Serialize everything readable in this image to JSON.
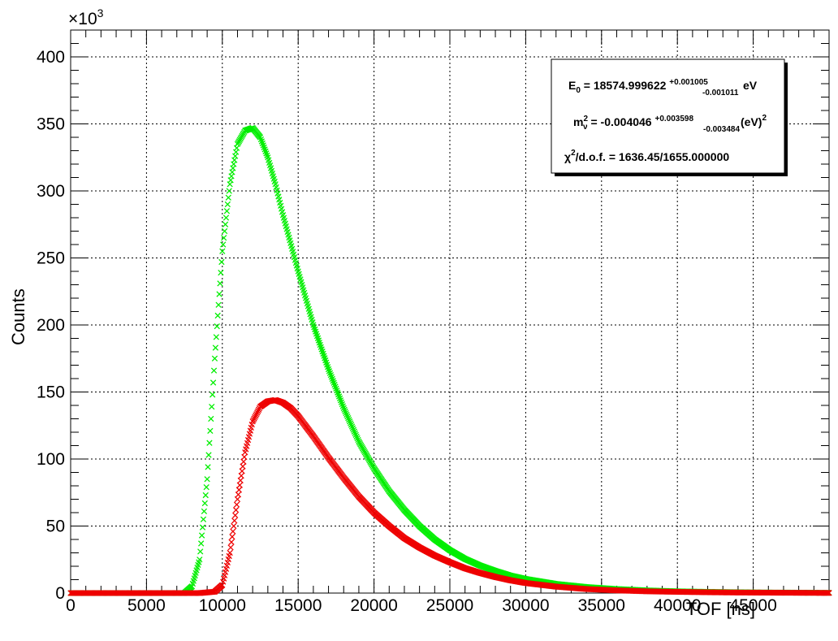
{
  "chart_data": {
    "type": "scatter",
    "xlabel": "TOF [ns]",
    "ylabel": "Counts",
    "y_multiplier_base": "×10",
    "y_multiplier_exp": "3",
    "xlim": [
      0,
      50000
    ],
    "ylim": [
      0,
      420
    ],
    "x_ticks": [
      0,
      5000,
      10000,
      15000,
      20000,
      25000,
      30000,
      35000,
      40000,
      45000
    ],
    "x_tick_labels": [
      "0",
      "5000",
      "10000",
      "15000",
      "20000",
      "25000",
      "30000",
      "35000",
      "40000",
      "45000"
    ],
    "y_ticks": [
      0,
      50,
      100,
      150,
      200,
      250,
      300,
      350,
      400
    ],
    "y_tick_labels": [
      "0",
      "50",
      "100",
      "150",
      "200",
      "250",
      "300",
      "350",
      "400"
    ],
    "grid": true,
    "marker": "x",
    "series": [
      {
        "color": "#00ee00",
        "x": [
          0,
          4000,
          7500,
          8000,
          8500,
          9000,
          9500,
          10000,
          10500,
          11000,
          11500,
          12000,
          12500,
          13000,
          13500,
          14000,
          15000,
          16000,
          17000,
          18000,
          19000,
          20000,
          21000,
          22000,
          23000,
          24000,
          25000,
          26000,
          27000,
          28000,
          29000,
          30000,
          32000,
          34000,
          36000,
          38000,
          40000,
          42000,
          44000,
          46000,
          48000,
          50000
        ],
        "y": [
          0,
          0,
          0,
          5,
          25,
          85,
          175,
          255,
          305,
          335,
          345,
          347,
          340,
          325,
          305,
          282,
          240,
          200,
          167,
          138,
          113,
          93,
          76,
          62,
          50,
          40,
          32,
          25.5,
          20.5,
          16.5,
          13,
          10.5,
          6.8,
          4.5,
          3,
          2,
          1.3,
          0.9,
          0.6,
          0.4,
          0.3,
          0.2
        ]
      },
      {
        "color": "#ee0000",
        "x": [
          0,
          8500,
          9500,
          10000,
          10500,
          11000,
          11500,
          12000,
          12500,
          13000,
          13500,
          14000,
          14500,
          15000,
          16000,
          17000,
          18000,
          19000,
          20000,
          21000,
          22000,
          23000,
          24000,
          25000,
          26000,
          27000,
          28000,
          29000,
          30000,
          32000,
          34000,
          36000,
          38000,
          40000,
          42000,
          44000,
          46000,
          48000,
          50000
        ],
        "y": [
          0,
          0,
          1,
          6,
          30,
          70,
          105,
          128,
          139,
          143,
          144,
          142,
          138,
          132,
          117,
          101,
          86,
          72,
          60,
          50,
          41,
          34,
          28,
          23,
          18.5,
          15,
          12,
          9.5,
          7.5,
          4.8,
          3,
          2,
          1.3,
          0.9,
          0.6,
          0.4,
          0.3,
          0.2,
          0.1
        ]
      }
    ],
    "stats_box": {
      "line1": {
        "main": "E",
        "sub": "0",
        "rest": " = 18574.999622 ",
        "err_up": "+0.001005",
        "err_down": "-0.001011",
        "unit": " eV"
      },
      "line2": {
        "main": "m",
        "sup": "2",
        "sub": "ν",
        "rest": " = -0.004046 ",
        "err_up": "+0.003598",
        "err_down": "-0.003484",
        "unit": " (eV)",
        "unit_sup": "2"
      },
      "line3": {
        "main": "χ",
        "sup": "2",
        "rest": "/d.o.f. = 1636.45/1655.000000"
      }
    }
  }
}
